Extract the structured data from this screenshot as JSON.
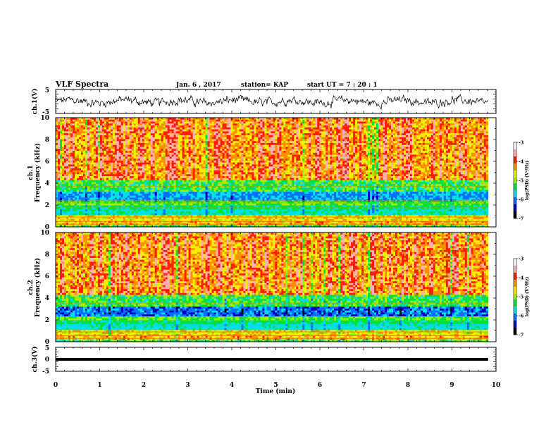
{
  "header": {
    "title": "VLF Spectra",
    "date": "Jan. 6 , 2017",
    "station": "station= KAP",
    "start_ut": "start  UT =   7 : 20 : 1"
  },
  "chart_data": [
    {
      "type": "line",
      "panel": "ch1-waveform",
      "ylabel": "ch.1(V)",
      "ylim": [
        -5,
        5
      ],
      "yticks": [
        "5",
        "-5"
      ],
      "xlim": [
        0,
        10
      ],
      "data_x_end": 9.82,
      "note_line": "dense noisy waveform fluctuating roughly between -3 and +3 V"
    },
    {
      "type": "heatmap",
      "panel": "ch1-spectrogram",
      "ylabel": "ch.1\nFrequency (kHz)",
      "ylabel_lines": [
        "ch.1",
        "Frequency (kHz)"
      ],
      "ylim": [
        0,
        10
      ],
      "yticks": [
        "0",
        "2",
        "4",
        "6",
        "8",
        "10"
      ],
      "xlim": [
        0,
        10
      ],
      "colorbar": {
        "label": "log(PSD) (V²/Hz)",
        "range": [
          -7,
          -3
        ],
        "ticks": [
          "-3",
          "-4",
          "-5",
          "-6",
          "-7"
        ]
      },
      "bands": [
        {
          "from_khz": 0,
          "to_khz": 1.0,
          "level": "yellow-green"
        },
        {
          "from_khz": 1.0,
          "to_khz": 3.5,
          "level": "cyan-blue"
        },
        {
          "from_khz": 3.5,
          "to_khz": 10,
          "level": "red-yellow"
        }
      ]
    },
    {
      "type": "heatmap",
      "panel": "ch2-spectrogram",
      "ylabel_lines": [
        "ch.2",
        "Frequency (kHz)"
      ],
      "ylim": [
        0,
        10
      ],
      "yticks": [
        "0",
        "2",
        "4",
        "6",
        "8",
        "10"
      ],
      "xlim": [
        0,
        10
      ],
      "colorbar": {
        "label": "log(PSD) (V²/Hz)",
        "range": [
          -7,
          -3
        ],
        "ticks": [
          "-3",
          "-4",
          "-5",
          "-6",
          "-7"
        ]
      }
    },
    {
      "type": "line",
      "panel": "ch3-waveform",
      "ylabel": "ch.3(V)",
      "ylim": [
        -5,
        5
      ],
      "yticks": [
        "5",
        "0",
        "-5"
      ],
      "constant_value": 0,
      "xlim": [
        0,
        10
      ],
      "xticks": [
        "0",
        "1",
        "2",
        "3",
        "4",
        "5",
        "6",
        "7",
        "8",
        "9",
        "10"
      ],
      "xlabel": "Time (min)"
    }
  ],
  "colors": {
    "map": [
      "#000000",
      "#0000b4",
      "#0070ff",
      "#00e0e8",
      "#00e040",
      "#a0f000",
      "#f0f000",
      "#ff9000",
      "#ff1e00",
      "#ffb0b0",
      "#ffffff"
    ]
  }
}
